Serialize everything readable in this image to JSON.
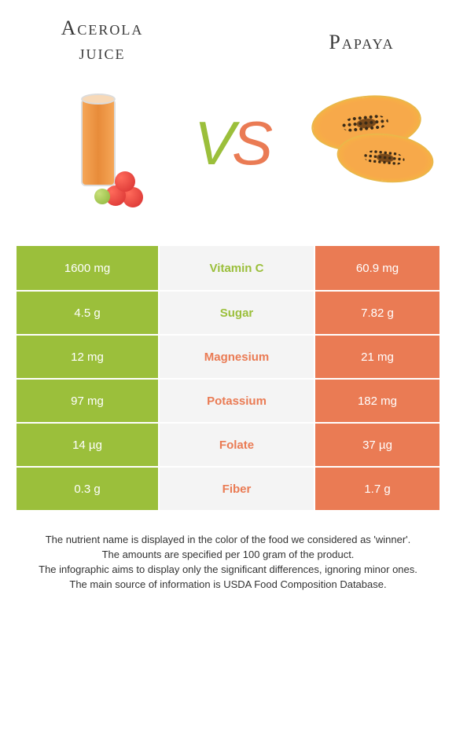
{
  "colors": {
    "left": "#9bbf3b",
    "right": "#ea7b54",
    "mid_bg": "#f4f4f4",
    "text": "#333333"
  },
  "left": {
    "title_line1": "Acerola",
    "title_line2": "juice"
  },
  "right": {
    "title": "Papaya"
  },
  "vs": {
    "v": "V",
    "s": "S"
  },
  "table": {
    "rows": [
      {
        "label": "Vitamin C",
        "left": "1600 mg",
        "right": "60.9 mg",
        "winner": "left"
      },
      {
        "label": "Sugar",
        "left": "4.5 g",
        "right": "7.82 g",
        "winner": "left"
      },
      {
        "label": "Magnesium",
        "left": "12 mg",
        "right": "21 mg",
        "winner": "right"
      },
      {
        "label": "Potassium",
        "left": "97 mg",
        "right": "182 mg",
        "winner": "right"
      },
      {
        "label": "Folate",
        "left": "14 µg",
        "right": "37 µg",
        "winner": "right"
      },
      {
        "label": "Fiber",
        "left": "0.3 g",
        "right": "1.7 g",
        "winner": "right"
      }
    ]
  },
  "footnotes": [
    "The nutrient name is displayed in the color of the food we considered as 'winner'.",
    "The amounts are specified per 100 gram of the product.",
    "The infographic aims to display only the significant differences, ignoring minor ones.",
    "The main source of information is USDA Food Composition Database."
  ]
}
